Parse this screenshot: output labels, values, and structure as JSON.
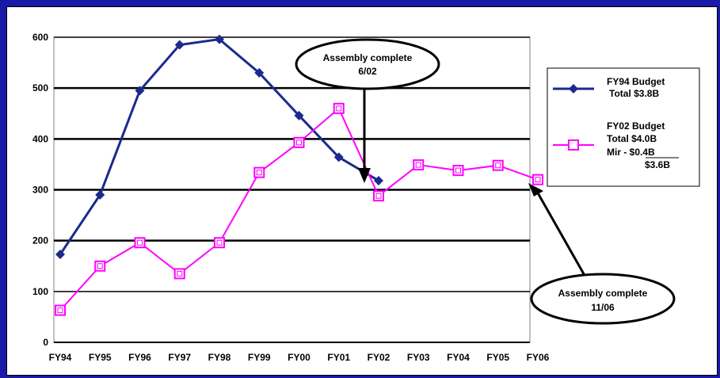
{
  "chart_data": {
    "type": "line",
    "categories": [
      "FY94",
      "FY95",
      "FY96",
      "FY97",
      "FY98",
      "FY99",
      "FY00",
      "FY01",
      "FY02",
      "FY03",
      "FY04",
      "FY05",
      "FY06"
    ],
    "ylim": [
      0,
      600
    ],
    "yticks": [
      "0",
      "100",
      "200",
      "300",
      "400",
      "500",
      "600"
    ],
    "grid": true,
    "legend_position": "right",
    "series": [
      {
        "name_lines": [
          "FY94 Budget",
          "Total $3.8B"
        ],
        "color": "#1c2a8c",
        "marker": "diamond",
        "values": [
          173,
          290,
          495,
          585,
          596,
          530,
          446,
          364,
          318,
          null,
          null,
          null,
          null
        ]
      },
      {
        "name_lines": [
          "FY02 Budget",
          "Total $4.0B",
          "Mir  - $0.4B",
          "$3.6B"
        ],
        "color": "#ff00ff",
        "marker": "open-square",
        "values": [
          63,
          150,
          196,
          135,
          196,
          334,
          393,
          460,
          288,
          349,
          338,
          348,
          320
        ]
      }
    ],
    "annotations": [
      {
        "lines": [
          "Assembly complete",
          "6/02"
        ],
        "points_to": "FY02"
      },
      {
        "lines": [
          "Assembly complete",
          "11/06"
        ],
        "points_to": "FY06"
      }
    ]
  }
}
